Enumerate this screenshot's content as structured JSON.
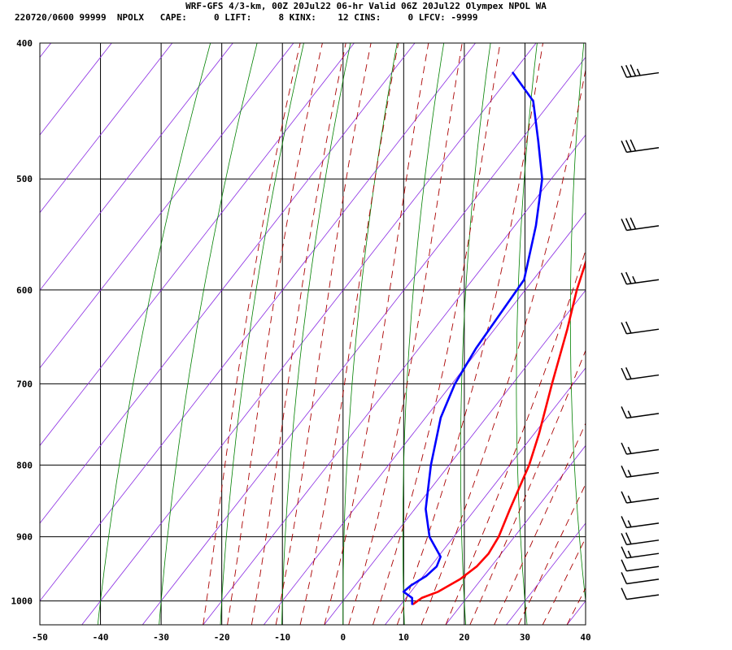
{
  "header": {
    "title": "WRF-GFS 4/3-km, 00Z 20Jul22 06-hr Valid 06Z 20Jul22 Olympex NPOL WA",
    "subtitle": "220720/0600 99999  NPOLX   CAPE:     0 LIFT:     8 KINX:    12 CINS:     0 LFCV: -9999"
  },
  "chart_data": {
    "type": "line",
    "subtype": "skew-t log-p sounding",
    "xlabel": "",
    "ylabel": "",
    "x_ticks": [
      -50,
      -40,
      -30,
      -20,
      -10,
      0,
      10,
      20,
      30,
      40
    ],
    "p_ticks": [
      400,
      500,
      600,
      700,
      800,
      900,
      1000
    ],
    "y_scale": "log",
    "x_range": [
      -50,
      40
    ],
    "p_range": [
      1040,
      400
    ],
    "grid": true,
    "colors": {
      "temperature": "#ff0000",
      "dewpoint": "#0000ff",
      "isotherms": "#8a2be2",
      "dry_adiabats": "#008000",
      "moist_adiabats": "#aa0000",
      "wind_barbs": "#000000",
      "grid": "#000000"
    },
    "series": [
      {
        "key": "temperature",
        "points": [
          {
            "p": 1005,
            "x": 12.0
          },
          {
            "p": 995,
            "x": 12.6
          },
          {
            "p": 985,
            "x": 14.5
          },
          {
            "p": 965,
            "x": 16.5
          },
          {
            "p": 945,
            "x": 17.6
          },
          {
            "p": 925,
            "x": 17.9
          },
          {
            "p": 900,
            "x": 17.4
          },
          {
            "p": 860,
            "x": 15.7
          },
          {
            "p": 800,
            "x": 13.2
          },
          {
            "p": 760,
            "x": 10.8
          },
          {
            "p": 700,
            "x": 6.5
          },
          {
            "p": 640,
            "x": 2.0
          },
          {
            "p": 600,
            "x": -1.5
          },
          {
            "p": 550,
            "x": -5.5
          },
          {
            "p": 500,
            "x": -9.5
          },
          {
            "p": 470,
            "x": -12.8
          },
          {
            "p": 440,
            "x": -17.0
          },
          {
            "p": 420,
            "x": -20.5
          }
        ]
      },
      {
        "key": "dewpoint",
        "points": [
          {
            "p": 1005,
            "x": 11.8
          },
          {
            "p": 995,
            "x": 11.0
          },
          {
            "p": 985,
            "x": 8.8
          },
          {
            "p": 975,
            "x": 9.2
          },
          {
            "p": 960,
            "x": 10.5
          },
          {
            "p": 945,
            "x": 11.0
          },
          {
            "p": 930,
            "x": 10.4
          },
          {
            "p": 900,
            "x": 6.0
          },
          {
            "p": 860,
            "x": 1.8
          },
          {
            "p": 800,
            "x": -3.0
          },
          {
            "p": 740,
            "x": -7.5
          },
          {
            "p": 700,
            "x": -9.5
          },
          {
            "p": 660,
            "x": -10.6
          },
          {
            "p": 620,
            "x": -11.1
          },
          {
            "p": 590,
            "x": -11.5
          },
          {
            "p": 540,
            "x": -16.5
          },
          {
            "p": 500,
            "x": -21.5
          },
          {
            "p": 470,
            "x": -27.0
          },
          {
            "p": 440,
            "x": -33.0
          },
          {
            "p": 420,
            "x": -40.0
          }
        ]
      }
    ],
    "wind_barbs": [
      {
        "p": 420,
        "speed_kt": 35
      },
      {
        "p": 475,
        "speed_kt": 30
      },
      {
        "p": 540,
        "speed_kt": 30
      },
      {
        "p": 590,
        "speed_kt": 25
      },
      {
        "p": 640,
        "speed_kt": 20
      },
      {
        "p": 690,
        "speed_kt": 20
      },
      {
        "p": 735,
        "speed_kt": 15
      },
      {
        "p": 780,
        "speed_kt": 15
      },
      {
        "p": 810,
        "speed_kt": 15
      },
      {
        "p": 845,
        "speed_kt": 15
      },
      {
        "p": 880,
        "speed_kt": 15
      },
      {
        "p": 905,
        "speed_kt": 20
      },
      {
        "p": 925,
        "speed_kt": 15
      },
      {
        "p": 945,
        "speed_kt": 10
      },
      {
        "p": 965,
        "speed_kt": 10
      },
      {
        "p": 990,
        "speed_kt": 10
      }
    ]
  }
}
